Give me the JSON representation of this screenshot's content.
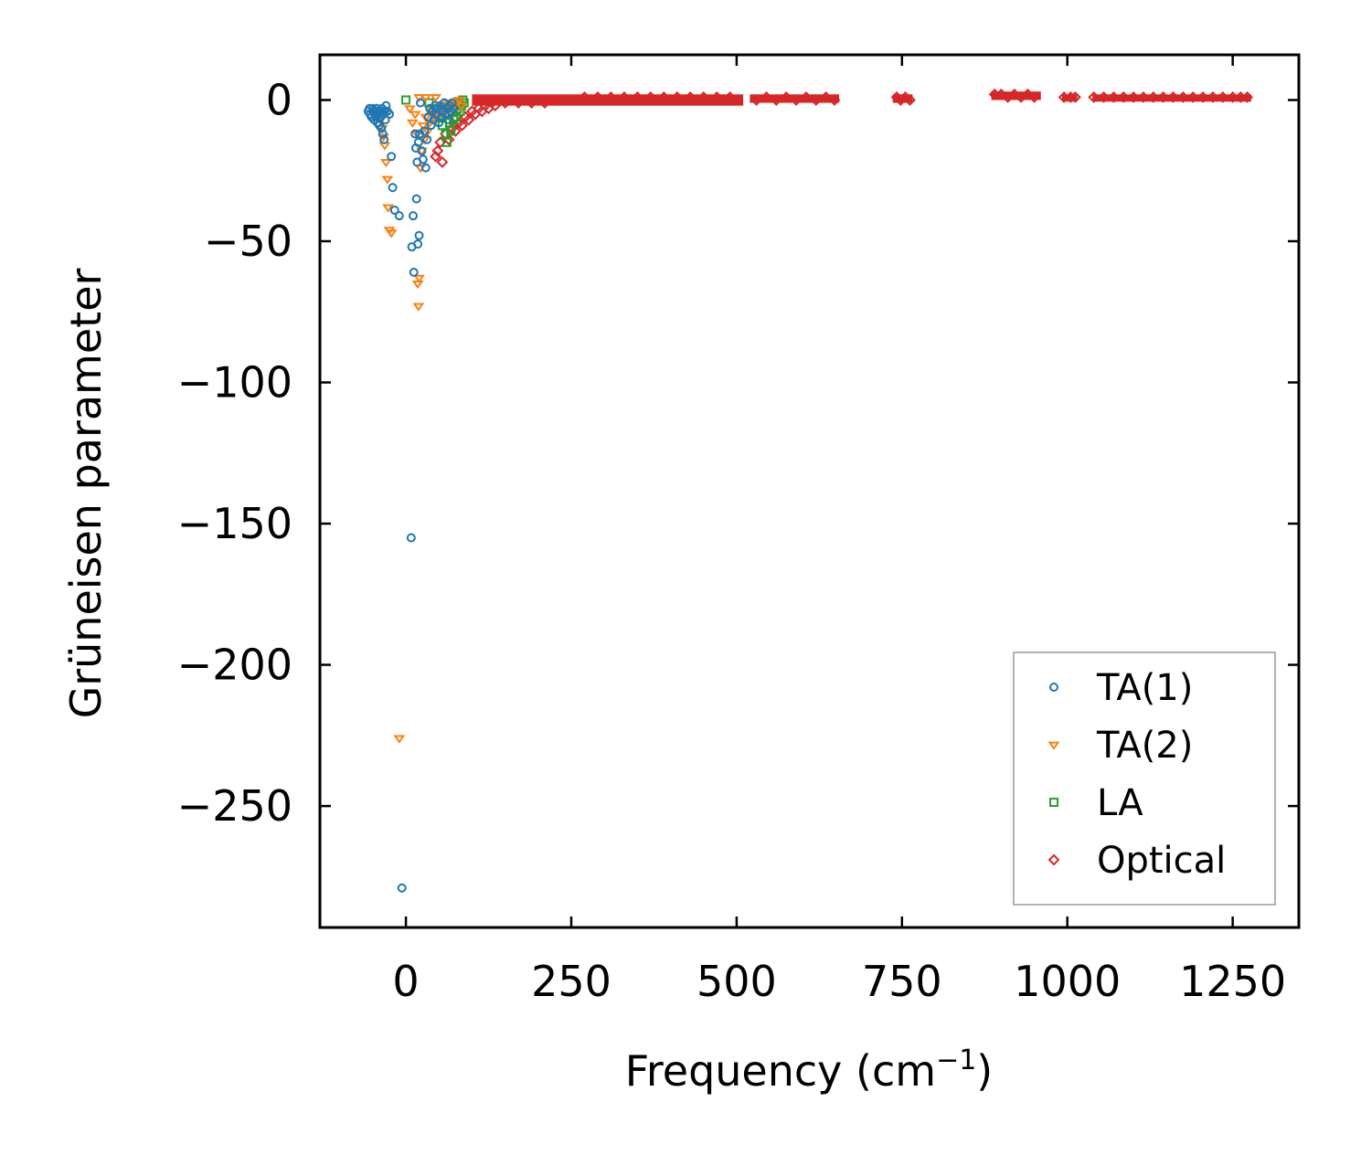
{
  "chart_data": {
    "type": "scatter",
    "title": "",
    "xlabel": "Frequency (cm",
    "xlabel_superscript": "−1",
    "xlabel_suffix": ")",
    "ylabel": "Grüneisen parameter",
    "xlim": [
      -130,
      1350
    ],
    "ylim": [
      -293,
      16
    ],
    "x_ticks": [
      0,
      250,
      500,
      750,
      1000,
      1250
    ],
    "x_tick_labels": [
      "0",
      "250",
      "500",
      "750",
      "1000",
      "1250"
    ],
    "y_ticks": [
      0,
      -50,
      -100,
      -150,
      -200,
      -250
    ],
    "y_tick_labels": [
      "0",
      "−50",
      "−100",
      "−150",
      "−200",
      "−250"
    ],
    "grid": false,
    "legend_position": "bottom-right",
    "series": [
      {
        "name": "TA(1)",
        "marker": "circle",
        "color": "#1f77b4",
        "points": [
          [
            -57,
            -4
          ],
          [
            -55,
            -3
          ],
          [
            -54,
            -5
          ],
          [
            -52,
            -6
          ],
          [
            -50,
            -3
          ],
          [
            -49,
            -4
          ],
          [
            -48,
            -7
          ],
          [
            -47,
            -5
          ],
          [
            -46,
            -4
          ],
          [
            -45,
            -6
          ],
          [
            -44,
            -3
          ],
          [
            -43,
            -8
          ],
          [
            -42,
            -5
          ],
          [
            -41,
            -4
          ],
          [
            -40,
            -9
          ],
          [
            -39,
            -6
          ],
          [
            -38,
            -4
          ],
          [
            -37,
            -10
          ],
          [
            -36,
            -3
          ],
          [
            -35,
            -12
          ],
          [
            -34,
            -5
          ],
          [
            -33,
            -14
          ],
          [
            -32,
            -4
          ],
          [
            -31,
            -7
          ],
          [
            -30,
            -2
          ],
          [
            -28,
            -4
          ],
          [
            -25,
            -5
          ],
          [
            -22,
            -20
          ],
          [
            -20,
            -31
          ],
          [
            -17,
            -39
          ],
          [
            -10,
            -41
          ],
          [
            -6,
            -279
          ],
          [
            8,
            -155
          ],
          [
            9,
            -52
          ],
          [
            11,
            -41
          ],
          [
            12,
            -61
          ],
          [
            14,
            -12
          ],
          [
            15,
            -17
          ],
          [
            16,
            -35
          ],
          [
            17,
            -22
          ],
          [
            18,
            -51
          ],
          [
            19,
            -15
          ],
          [
            20,
            -48
          ],
          [
            21,
            -12
          ],
          [
            22,
            -1
          ],
          [
            24,
            -18
          ],
          [
            26,
            -21
          ],
          [
            28,
            -11
          ],
          [
            30,
            -24
          ],
          [
            32,
            -14
          ],
          [
            34,
            -6
          ],
          [
            36,
            -3
          ],
          [
            38,
            -9
          ],
          [
            40,
            -4
          ],
          [
            42,
            -7
          ],
          [
            44,
            -2
          ],
          [
            46,
            -5
          ],
          [
            48,
            -3
          ],
          [
            50,
            -8
          ],
          [
            52,
            -2
          ],
          [
            54,
            -6
          ],
          [
            56,
            -4
          ],
          [
            58,
            -1
          ],
          [
            60,
            -5
          ],
          [
            62,
            -3
          ],
          [
            64,
            -7
          ],
          [
            66,
            -2
          ],
          [
            68,
            -4
          ],
          [
            70,
            -1
          ],
          [
            72,
            -3
          ]
        ]
      },
      {
        "name": "TA(2)",
        "marker": "triangle-down",
        "color": "#ff7f0e",
        "points": [
          [
            -40,
            -4
          ],
          [
            -38,
            -7
          ],
          [
            -36,
            -10
          ],
          [
            -34,
            -13
          ],
          [
            -32,
            -16
          ],
          [
            -30,
            -22
          ],
          [
            -28,
            -28
          ],
          [
            -27,
            -38
          ],
          [
            -25,
            -46
          ],
          [
            -22,
            -47
          ],
          [
            -10,
            -226
          ],
          [
            6,
            -3
          ],
          [
            10,
            -8
          ],
          [
            14,
            -5
          ],
          [
            17,
            -12
          ],
          [
            18,
            -65
          ],
          [
            19,
            -73
          ],
          [
            20,
            -63
          ],
          [
            22,
            -24
          ],
          [
            24,
            -18
          ],
          [
            26,
            -9
          ],
          [
            28,
            -14
          ],
          [
            30,
            -6
          ],
          [
            33,
            -11
          ],
          [
            36,
            -8
          ],
          [
            40,
            -4
          ],
          [
            44,
            -6
          ],
          [
            48,
            -3
          ],
          [
            52,
            -5
          ],
          [
            56,
            -2
          ],
          [
            60,
            -4
          ],
          [
            64,
            -1
          ],
          [
            68,
            -3
          ],
          [
            72,
            -2
          ],
          [
            76,
            -1
          ],
          [
            80,
            0
          ],
          [
            84,
            -2
          ],
          [
            20,
            1
          ],
          [
            30,
            1
          ],
          [
            45,
            1
          ]
        ]
      },
      {
        "name": "LA",
        "marker": "square",
        "color": "#2ca02c",
        "points": [
          [
            0,
            0
          ],
          [
            35,
            -1
          ],
          [
            45,
            -3
          ],
          [
            50,
            -6
          ],
          [
            55,
            -9
          ],
          [
            60,
            -12
          ],
          [
            62,
            -15
          ],
          [
            64,
            -5
          ],
          [
            66,
            -8
          ],
          [
            68,
            -11
          ],
          [
            70,
            -4
          ],
          [
            72,
            -7
          ],
          [
            74,
            -2
          ],
          [
            76,
            -6
          ],
          [
            78,
            -3
          ],
          [
            80,
            -1
          ],
          [
            82,
            -4
          ],
          [
            84,
            -2
          ],
          [
            86,
            0
          ],
          [
            88,
            -1
          ]
        ]
      },
      {
        "name": "Optical",
        "marker": "diamond",
        "color": "#d62728",
        "points": [
          [
            45,
            -20
          ],
          [
            48,
            -18
          ],
          [
            52,
            -15
          ],
          [
            55,
            -22
          ],
          [
            60,
            -12
          ],
          [
            65,
            -14
          ],
          [
            70,
            -10
          ],
          [
            75,
            -11
          ],
          [
            80,
            -8
          ],
          [
            85,
            -9
          ],
          [
            90,
            -6
          ],
          [
            95,
            -7
          ],
          [
            100,
            -4
          ],
          [
            105,
            -5
          ],
          [
            110,
            -3
          ],
          [
            115,
            -4
          ],
          [
            120,
            -2
          ],
          [
            125,
            -3
          ],
          [
            130,
            -1
          ],
          [
            135,
            -2
          ],
          [
            140,
            0
          ],
          [
            150,
            -1
          ],
          [
            160,
            0
          ],
          [
            170,
            -1
          ],
          [
            180,
            0
          ],
          [
            190,
            -1
          ],
          [
            200,
            0
          ],
          [
            210,
            -1
          ],
          [
            220,
            0
          ],
          [
            230,
            0
          ],
          [
            240,
            0
          ],
          [
            250,
            0
          ],
          [
            260,
            0
          ],
          [
            270,
            1
          ],
          [
            280,
            0
          ],
          [
            290,
            1
          ],
          [
            300,
            0
          ],
          [
            310,
            1
          ],
          [
            320,
            0
          ],
          [
            330,
            1
          ],
          [
            340,
            0
          ],
          [
            350,
            1
          ],
          [
            360,
            0
          ],
          [
            370,
            1
          ],
          [
            380,
            0
          ],
          [
            390,
            1
          ],
          [
            400,
            0
          ],
          [
            410,
            1
          ],
          [
            420,
            0
          ],
          [
            430,
            1
          ],
          [
            440,
            0
          ],
          [
            450,
            1
          ],
          [
            460,
            0
          ],
          [
            470,
            1
          ],
          [
            480,
            0
          ],
          [
            490,
            1
          ],
          [
            500,
            0
          ],
          [
            530,
            0
          ],
          [
            545,
            1
          ],
          [
            560,
            0
          ],
          [
            575,
            1
          ],
          [
            590,
            0
          ],
          [
            605,
            1
          ],
          [
            620,
            0
          ],
          [
            635,
            1
          ],
          [
            648,
            0
          ],
          [
            742,
            1
          ],
          [
            748,
            0
          ],
          [
            755,
            1
          ],
          [
            762,
            0
          ],
          [
            890,
            2
          ],
          [
            900,
            2
          ],
          [
            910,
            1
          ],
          [
            920,
            2
          ],
          [
            930,
            1
          ],
          [
            940,
            2
          ],
          [
            950,
            1
          ],
          [
            995,
            1
          ],
          [
            1005,
            1
          ],
          [
            1012,
            1
          ],
          [
            1040,
            1
          ],
          [
            1055,
            1
          ],
          [
            1070,
            1
          ],
          [
            1085,
            1
          ],
          [
            1100,
            1
          ],
          [
            1115,
            1
          ],
          [
            1130,
            1
          ],
          [
            1145,
            1
          ],
          [
            1160,
            1
          ],
          [
            1175,
            1
          ],
          [
            1190,
            1
          ],
          [
            1205,
            1
          ],
          [
            1220,
            1
          ],
          [
            1235,
            1
          ],
          [
            1250,
            1
          ],
          [
            1262,
            1
          ],
          [
            1272,
            1
          ]
        ],
        "bands": [
          [
            100,
            510,
            -2,
            2
          ],
          [
            520,
            655,
            -1,
            2
          ],
          [
            736,
            766,
            -1,
            2
          ],
          [
            885,
            960,
            0,
            3
          ],
          [
            992,
            1015,
            0,
            2
          ],
          [
            1038,
            1278,
            0,
            2
          ]
        ]
      }
    ]
  }
}
